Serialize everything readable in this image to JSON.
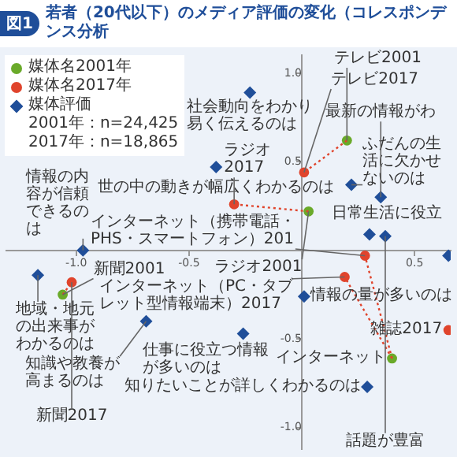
{
  "chart_data": {
    "type": "scatter",
    "title": "若者（20代以下）のメディア評価の変化（コレスポンデンス分析",
    "xlim": [
      -1.31,
      0.66
    ],
    "ylim": [
      -1.12,
      1.1
    ],
    "xticks": [
      {
        "value": -1.0,
        "label": "-1.0"
      },
      {
        "value": -0.5,
        "label": "-0.5"
      },
      {
        "value": 0.5,
        "label": "0.5"
      }
    ],
    "yticks": [
      {
        "value": 1.0,
        "label": "1.0"
      },
      {
        "value": 0.5,
        "label": "0.5"
      },
      {
        "value": -0.5,
        "label": "-0.5"
      },
      {
        "value": -1.0,
        "label": "-1.0"
      }
    ],
    "grid": false,
    "legend": "top left",
    "series": [
      {
        "type": "line",
        "color": "#e0442c",
        "line_style": "dotted",
        "marker": "none",
        "x": [
          0.2,
          0.01
        ],
        "values": [
          0.62,
          0.44
        ]
      },
      {
        "type": "line",
        "color": "#e0442c",
        "line_style": "dotted",
        "marker": "none",
        "x": [
          0.03,
          -0.3
        ],
        "values": [
          0.22,
          0.26
        ]
      },
      {
        "type": "line",
        "color": "#e0442c",
        "line_style": "dotted",
        "marker": "none",
        "x": [
          -1.06,
          -1.02
        ],
        "values": [
          -0.25,
          -0.18
        ]
      },
      {
        "type": "line",
        "color": "#e0442c",
        "line_style": "dotted",
        "marker": "none",
        "x": [
          0.4,
          0.19
        ],
        "values": [
          -0.61,
          -0.15
        ]
      },
      {
        "type": "line",
        "color": "#e0442c",
        "line_style": "dotted",
        "marker": "none",
        "x": [
          0.4,
          0.28
        ],
        "values": [
          -0.61,
          -0.03
        ]
      },
      {
        "name": "媒体名2001年",
        "color": "#6aaa2a",
        "marker": "circle",
        "x": [
          0.2,
          0.03,
          -1.06,
          0.4
        ],
        "values": [
          0.62,
          0.22,
          -0.25,
          -0.61
        ]
      },
      {
        "name": "媒体名2017年",
        "color": "#e0442c",
        "marker": "circle",
        "x": [
          0.01,
          -0.3,
          -1.02,
          0.19,
          0.28,
          0.65
        ],
        "values": [
          0.44,
          0.26,
          -0.18,
          -0.15,
          -0.03,
          -0.45
        ]
      },
      {
        "name": "媒体評価",
        "color": "#1f4e99",
        "marker": "diamond",
        "x": [
          -0.23,
          -0.38,
          -1.17,
          -0.97,
          0.22,
          0.35,
          0.3,
          0.37,
          0.65,
          0.01,
          -0.69,
          -0.26,
          0.29
        ],
        "values": [
          0.89,
          0.47,
          -0.14,
          0.0,
          0.37,
          0.3,
          0.09,
          0.08,
          -0.03,
          -0.26,
          -0.4,
          -0.47,
          -0.77
        ]
      }
    ],
    "annotations": [
      "図1",
      "2001年：n=24,425",
      "2017年：n=18,865",
      {
        "text": "テレビ2001",
        "x": 0.2,
        "y": 0.62
      },
      {
        "text": "ラジオ2001",
        "x": 0.03,
        "y": 0.22
      },
      {
        "text": "新聞2001",
        "x": -1.06,
        "y": -0.25
      },
      {
        "text": "インターネット",
        "x": 0.4,
        "y": -0.61
      },
      {
        "text": "テレビ2017",
        "x": 0.01,
        "y": 0.44
      },
      {
        "text": "ラジオ2017",
        "x": -0.3,
        "y": 0.26
      },
      {
        "text": "新聞2017",
        "x": -1.02,
        "y": -0.18
      },
      {
        "text": "インターネット（PC・タブレット型情報端末）2017",
        "x": 0.19,
        "y": -0.15
      },
      {
        "text": "インターネット（携帯電話・PHS・スマートフォン）201",
        "x": 0.28,
        "y": -0.03
      },
      {
        "text": "雑誌2017",
        "x": 0.65,
        "y": -0.45
      },
      {
        "text": "社会動向をわかり易く伝えるのは",
        "x": -0.23,
        "y": 0.89
      },
      {
        "text": "世の中の動きが幅広くわかるのは",
        "x": -0.38,
        "y": 0.47
      },
      {
        "text": "地域・地元の出来事がわかるのは",
        "x": -1.17,
        "y": -0.14
      },
      {
        "text": "情報の内容が信頼できるのは",
        "x": -0.97,
        "y": 0.0
      },
      {
        "text": "ふだんの生活に欠かせないのは",
        "x": 0.22,
        "y": 0.37
      },
      {
        "text": "最新の情報がわ",
        "x": 0.35,
        "y": 0.3
      },
      {
        "text": "日常生活に役立",
        "x": 0.3,
        "y": 0.09
      },
      {
        "text": "話題が豊富",
        "x": 0.37,
        "y": 0.08
      },
      {
        "text": "情報の量が多いのは",
        "x": 0.01,
        "y": -0.26
      },
      {
        "text": "知識や教養が高まるのは",
        "x": -0.69,
        "y": -0.4
      },
      {
        "text": "仕事に役立つ情報が多いのは",
        "x": -0.26,
        "y": -0.47
      },
      {
        "text": "知りたいことが詳しくわかるのは",
        "x": 0.29,
        "y": -0.77
      }
    ]
  }
}
